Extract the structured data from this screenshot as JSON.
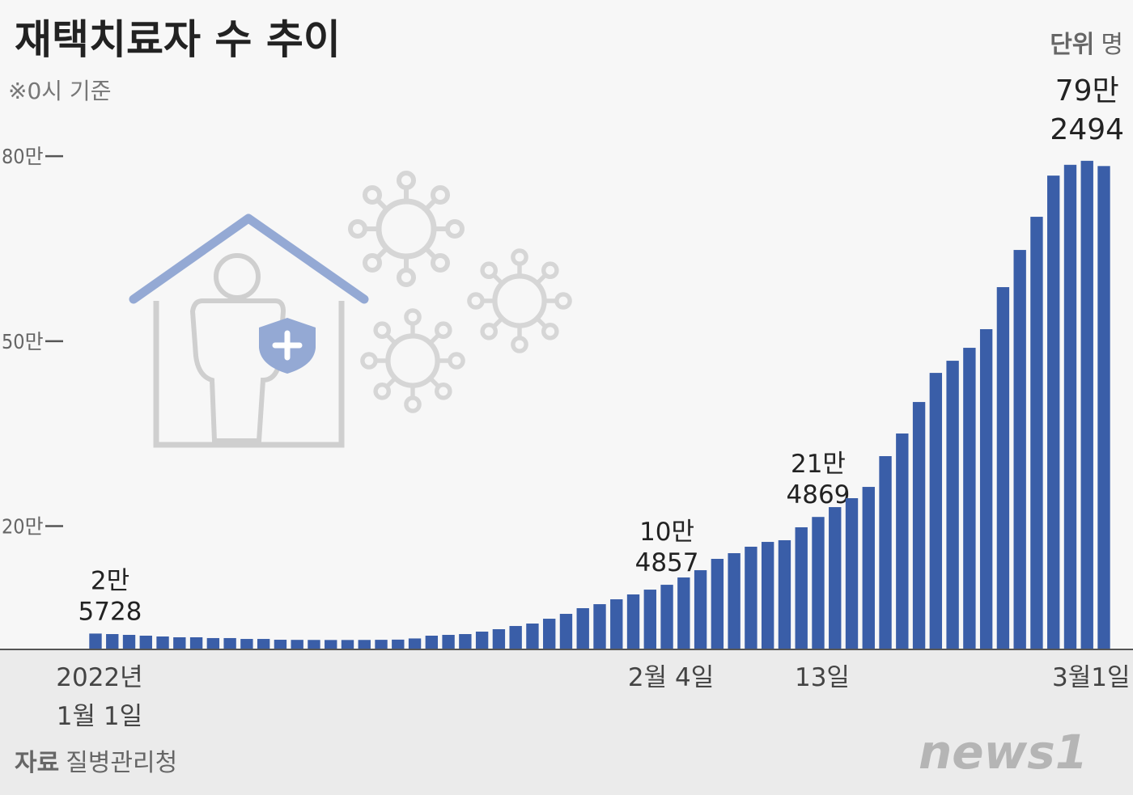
{
  "chart_data": {
    "type": "bar",
    "title": "재택치료자 수 추이",
    "subtitle": "※0시 기준",
    "unit_label": "단위",
    "unit": "명",
    "source_label": "자료",
    "source": "질병관리청",
    "logo": "news1",
    "color": "#3a5ea8",
    "grid": false,
    "ylim": [
      0,
      850000
    ],
    "yticks": [
      {
        "value": 200000,
        "label": "20만"
      },
      {
        "value": 500000,
        "label": "50만"
      },
      {
        "value": 800000,
        "label": "80만"
      }
    ],
    "categories": [
      "2022년\n1월 1일",
      null,
      null,
      null,
      null,
      null,
      null,
      null,
      null,
      null,
      null,
      null,
      null,
      null,
      null,
      null,
      null,
      null,
      null,
      null,
      null,
      null,
      null,
      null,
      null,
      null,
      null,
      null,
      null,
      null,
      null,
      null,
      null,
      null,
      "2월 4일",
      null,
      null,
      null,
      null,
      null,
      null,
      null,
      null,
      "13일",
      null,
      null,
      null,
      null,
      null,
      null,
      null,
      null,
      null,
      null,
      null,
      null,
      null,
      null,
      null,
      "3월1일",
      null
    ],
    "values": [
      25728,
      24900,
      23600,
      22300,
      21000,
      19700,
      19700,
      18400,
      18400,
      17000,
      17000,
      15700,
      15500,
      15400,
      15300,
      15300,
      15400,
      15600,
      15900,
      17800,
      22300,
      23600,
      24900,
      28900,
      32800,
      38000,
      42000,
      49800,
      57700,
      66900,
      73400,
      81300,
      89200,
      97000,
      104857,
      116700,
      128500,
      146900,
      156100,
      166600,
      174400,
      177100,
      198100,
      214869,
      230800,
      245300,
      263600,
      313500,
      350200,
      401300,
      448500,
      468200,
      489200,
      519400,
      587600,
      647900,
      701700,
      768500,
      786000,
      792494,
      784000
    ],
    "value_labels": [
      "2만\n5728",
      null,
      null,
      null,
      null,
      null,
      null,
      null,
      null,
      null,
      null,
      null,
      null,
      null,
      null,
      null,
      null,
      null,
      null,
      null,
      null,
      null,
      null,
      null,
      null,
      null,
      null,
      null,
      null,
      null,
      null,
      null,
      null,
      null,
      "10만\n4857",
      null,
      null,
      null,
      null,
      null,
      null,
      null,
      null,
      "21만\n4869",
      null,
      null,
      null,
      null,
      null,
      null,
      null,
      null,
      null,
      null,
      null,
      null,
      null,
      null,
      null,
      "79만\n2494",
      null
    ]
  }
}
